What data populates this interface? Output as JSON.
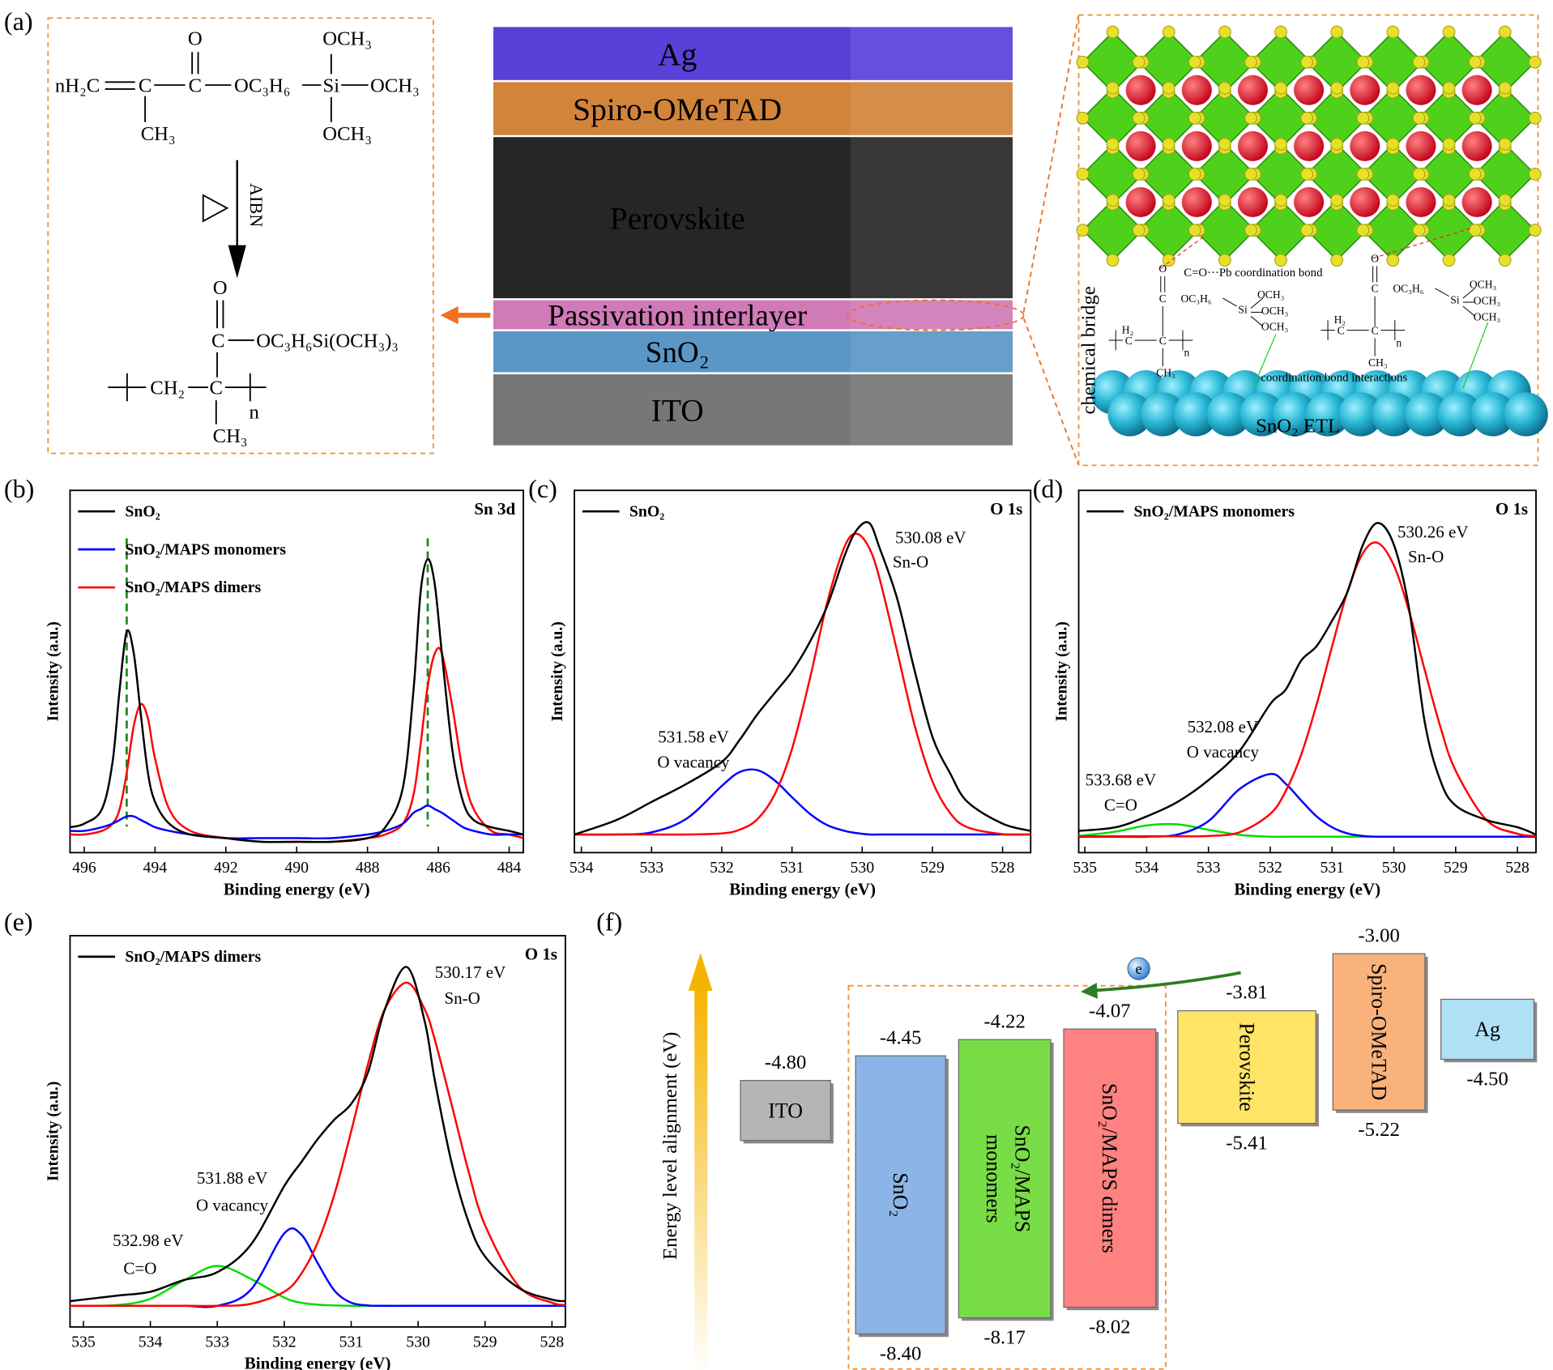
{
  "panel_a": {
    "label": "(a)",
    "monomer": [
      "nH₂C",
      "C",
      "O",
      "C",
      "OC₃H₆",
      "Si",
      "OCH₃",
      "OCH₃",
      "OCH₃",
      "CH₃"
    ],
    "reagent": "AIBN",
    "polymer": [
      "O",
      "C",
      "OC₃H₆Si(OCH₃)₃",
      "CH₂",
      "C",
      "n",
      "CH₃"
    ],
    "layers": [
      {
        "name": "Ag",
        "color": "#5b3fd9"
      },
      {
        "name": "Spiro-OMeTAD",
        "color": "#d2853a"
      },
      {
        "name": "Perovskite",
        "color": "#262626"
      },
      {
        "name": "Passivation interlayer",
        "color": "#d07ab8"
      },
      {
        "name": "SnO₂",
        "color": "#5b97c6"
      },
      {
        "name": "ITO",
        "color": "#777777"
      }
    ],
    "bridge_label": "chemical bridge",
    "bond_label": "C=O···Pb coordination bond",
    "interaction_label": "coordination bond interactions",
    "etl_label": "SnO₂ ETL",
    "bridge_structures": [
      [
        "O",
        "C",
        "OC₃H₆",
        "Si",
        "OCH₃",
        "OCH₃",
        "OCH₃",
        "H₂",
        "C",
        "C",
        "n",
        "CH₃"
      ],
      [
        "O",
        "C",
        "OC₃H₆",
        "Si",
        "OCH₃",
        "OCH₃",
        "OCH₃",
        "H₂",
        "C",
        "C",
        "n",
        "CH₃"
      ]
    ]
  },
  "chart_data": [
    {
      "type": "line",
      "label": "(b)",
      "corner_label": "Sn 3d",
      "xlabel": "Binding energy (eV)",
      "ylabel": "Intensity (a.u.)",
      "x": [
        496.4,
        496,
        495.5,
        495.2,
        495,
        494.8,
        494.6,
        494.4,
        494.2,
        494,
        493.6,
        493,
        492,
        491,
        490,
        489,
        488,
        487.5,
        487,
        486.7,
        486.5,
        486.3,
        486.1,
        485.9,
        485.6,
        485.3,
        485,
        484.5,
        484,
        483.6
      ],
      "xlim": [
        496.4,
        483.6
      ],
      "xticks": [
        496,
        494,
        492,
        490,
        488,
        486,
        484
      ],
      "ylim": [
        0,
        100
      ],
      "series": [
        {
          "name": "SnO₂",
          "color": "#000000",
          "values": [
            7,
            8,
            12,
            25,
            45,
            61,
            55,
            38,
            22,
            14,
            8,
            5,
            4,
            3,
            3,
            3,
            4,
            7,
            18,
            45,
            72,
            81,
            74,
            55,
            28,
            14,
            9,
            7,
            6,
            5
          ]
        },
        {
          "name": "SnO₂/MAPS monomers",
          "color": "#0000ff",
          "values": [
            6,
            6,
            7,
            8,
            9,
            10,
            10,
            9,
            8,
            7,
            6,
            5,
            4,
            4,
            4,
            4,
            5,
            6,
            8,
            11,
            12,
            13,
            12,
            11,
            9,
            7,
            6,
            5,
            5,
            5
          ]
        },
        {
          "name": "SnO₂/MAPS dimers",
          "color": "#ff0000",
          "values": [
            5,
            5,
            6,
            8,
            12,
            22,
            35,
            41,
            37,
            26,
            12,
            6,
            4,
            3,
            3,
            3,
            4,
            5,
            8,
            16,
            30,
            46,
            55,
            55,
            40,
            22,
            12,
            6,
            5,
            4
          ]
        }
      ],
      "reference_lines": [
        494.8,
        486.3
      ],
      "reference_color": "#1a8a1a"
    },
    {
      "type": "line",
      "label": "(c)",
      "corner_label": "O 1s",
      "xlabel": "Binding energy (eV)",
      "ylabel": "Intensity (a.u.)",
      "x": [
        534.1,
        533.5,
        533,
        532.5,
        532,
        531.75,
        531.5,
        531.25,
        531,
        530.75,
        530.5,
        530.25,
        530.08,
        529.9,
        529.75,
        529.5,
        529.25,
        529,
        528.75,
        528.5,
        528,
        527.6
      ],
      "xlim": [
        534.1,
        527.6
      ],
      "xticks": [
        534,
        533,
        532,
        531,
        530,
        529,
        528
      ],
      "ylim": [
        0,
        100
      ],
      "series": [
        {
          "name": "SnO₂",
          "color": "#000000",
          "values": [
            5,
            9,
            14,
            19,
            25,
            31,
            38,
            44,
            50,
            58,
            68,
            82,
            89,
            91,
            84,
            70,
            50,
            32,
            22,
            14,
            8,
            6
          ]
        },
        {
          "color": "#ff0000",
          "values": [
            5,
            5,
            5,
            5,
            5.3,
            6.3,
            9.1,
            15.9,
            28.6,
            47.6,
            68.9,
            84.5,
            88,
            84.1,
            75.5,
            55.4,
            34.9,
            19.7,
            11,
            7,
            5.1,
            5
          ]
        },
        {
          "color": "#0000ff",
          "values": [
            5,
            5,
            5.6,
            9.4,
            18.4,
            22.2,
            22.8,
            20,
            15.3,
            10.8,
            7.6,
            6,
            5.4,
            5,
            5,
            5,
            5,
            5,
            5,
            5,
            5,
            5
          ]
        }
      ],
      "annotations": [
        "530.08 eV",
        "Sn-O",
        "531.58 eV",
        "O vacancy"
      ]
    },
    {
      "type": "line",
      "label": "(d)",
      "corner_label": "O 1s",
      "xlabel": "Binding energy (eV)",
      "ylabel": "Intensity (a.u.)",
      "x": [
        535.1,
        534.5,
        534,
        533.5,
        533,
        532.5,
        532,
        531.75,
        531.5,
        531.25,
        531,
        530.75,
        530.5,
        530.26,
        530,
        529.75,
        529.5,
        529.25,
        529,
        528.5,
        528,
        527.7
      ],
      "xlim": [
        535.1,
        527.7
      ],
      "xticks": [
        535,
        534,
        533,
        532,
        531,
        530,
        529,
        528
      ],
      "ylim": [
        0,
        100
      ],
      "series": [
        {
          "name": "SnO₂/MAPS monomers",
          "color": "#000000",
          "values": [
            6,
            7,
            10,
            14,
            20,
            28,
            41,
            45,
            53,
            57,
            64,
            72,
            85,
            91,
            85,
            67,
            36,
            20,
            13,
            9,
            7,
            5
          ]
        },
        {
          "color": "#ff0000",
          "values": [
            4.5,
            4.5,
            4.5,
            4.5,
            4.6,
            5.6,
            10.7,
            17,
            27,
            40.9,
            56.9,
            72.1,
            82.7,
            85.5,
            79.3,
            66.4,
            50.4,
            34.9,
            22.6,
            9,
            5.2,
            4.6
          ]
        },
        {
          "color": "#0000ff",
          "values": [
            4.4,
            4.4,
            4.4,
            5,
            8.7,
            17.5,
            21.7,
            19,
            14.4,
            10,
            7,
            5.3,
            4.6,
            4.4,
            4.4,
            4.4,
            4.4,
            4.4,
            4.4,
            4.4,
            4.4,
            4.4
          ]
        },
        {
          "color": "#00dd00",
          "values": [
            4.6,
            5.8,
            7.5,
            7.8,
            6.3,
            4.9,
            4.4,
            4.4,
            4.4,
            4.4,
            4.4,
            4.4,
            4.4,
            4.4,
            4.4,
            4.4,
            4.4,
            4.4,
            4.4,
            4.4,
            4.4,
            4.4
          ]
        }
      ],
      "annotations": [
        "530.26 eV",
        "Sn-O",
        "532.08 eV",
        "O vacancy",
        "533.68 eV",
        "C=O"
      ]
    },
    {
      "type": "line",
      "label": "(e)",
      "corner_label": "O 1s",
      "xlabel": "Binding energy (eV)",
      "ylabel": "Intensity (a.u.)",
      "x": [
        535.2,
        534.5,
        534,
        533.5,
        533,
        532.5,
        532,
        531.75,
        531.5,
        531.25,
        531,
        530.75,
        530.5,
        530.17,
        529.9,
        529.75,
        529.5,
        529.25,
        529,
        528.5,
        528,
        527.8
      ],
      "xlim": [
        535.2,
        527.8
      ],
      "xticks": [
        535,
        534,
        533,
        532,
        531,
        530,
        529,
        528
      ],
      "ylim": [
        0,
        100
      ],
      "series": [
        {
          "name": "SnO₂/MAPS dimers",
          "color": "#000000",
          "values": [
            6.6,
            8,
            9,
            12,
            14,
            21,
            36,
            42,
            48,
            53,
            57,
            65,
            81,
            92,
            78,
            63,
            42,
            27,
            18,
            10,
            7,
            6.6
          ]
        },
        {
          "color": "#ff0000",
          "values": [
            5.4,
            5.4,
            5.4,
            5.4,
            5.4,
            5.9,
            9,
            13.5,
            21.6,
            33.9,
            50,
            67.1,
            81.1,
            88,
            81.1,
            73.4,
            56.9,
            40,
            26,
            10.5,
            6.2,
            5.6
          ]
        },
        {
          "color": "#0000ff",
          "values": [
            5.4,
            5.4,
            5.4,
            5.4,
            5.4,
            9.5,
            23.9,
            23.7,
            16.3,
            9.3,
            6.2,
            5.5,
            5.4,
            5.4,
            5.4,
            5.4,
            5.4,
            5.4,
            5.4,
            5.4,
            5.4,
            5.4
          ]
        },
        {
          "color": "#00dd00",
          "values": [
            5.4,
            5.6,
            7.2,
            11.9,
            15.6,
            12.3,
            7.5,
            6.2,
            5.7,
            5.5,
            5.4,
            5.4,
            5.4,
            5.4,
            5.4,
            5.4,
            5.4,
            5.4,
            5.4,
            5.4,
            5.4,
            5.4
          ]
        }
      ],
      "annotations": [
        "530.17 eV",
        "Sn-O",
        "531.88 eV",
        "O vacancy",
        "532.98 eV",
        "C=O"
      ]
    },
    {
      "type": "energy",
      "label": "(f)",
      "ylabel": "Energy level alignment (eV)",
      "categories": [
        "ITO",
        "SnO₂",
        "SnO₂/MAPS monomers",
        "SnO₂/MAPS dimers",
        "Perovskite",
        "Spiro-OMeTAD",
        "Ag"
      ],
      "lumo": [
        -4.8,
        -4.45,
        -4.22,
        -4.07,
        -3.81,
        -3.0,
        null
      ],
      "lumo_labels": [
        "-4.80",
        "-4.45",
        "-4.22",
        "-4.07",
        "-3.81",
        "-3.00",
        null
      ],
      "homo": [
        null,
        -8.4,
        -8.17,
        -8.02,
        -5.41,
        -5.22,
        -4.5
      ],
      "homo_labels": [
        null,
        "-8.40",
        "-8.17",
        "-8.02",
        "-5.41",
        "-5.22",
        "-4.50"
      ],
      "colors": [
        "#b5b5b5",
        "#8cb4e6",
        "#78dc46",
        "#ff8282",
        "#ffe466",
        "#f9b27c",
        "#aee0f6"
      ],
      "carrier": "e"
    }
  ]
}
